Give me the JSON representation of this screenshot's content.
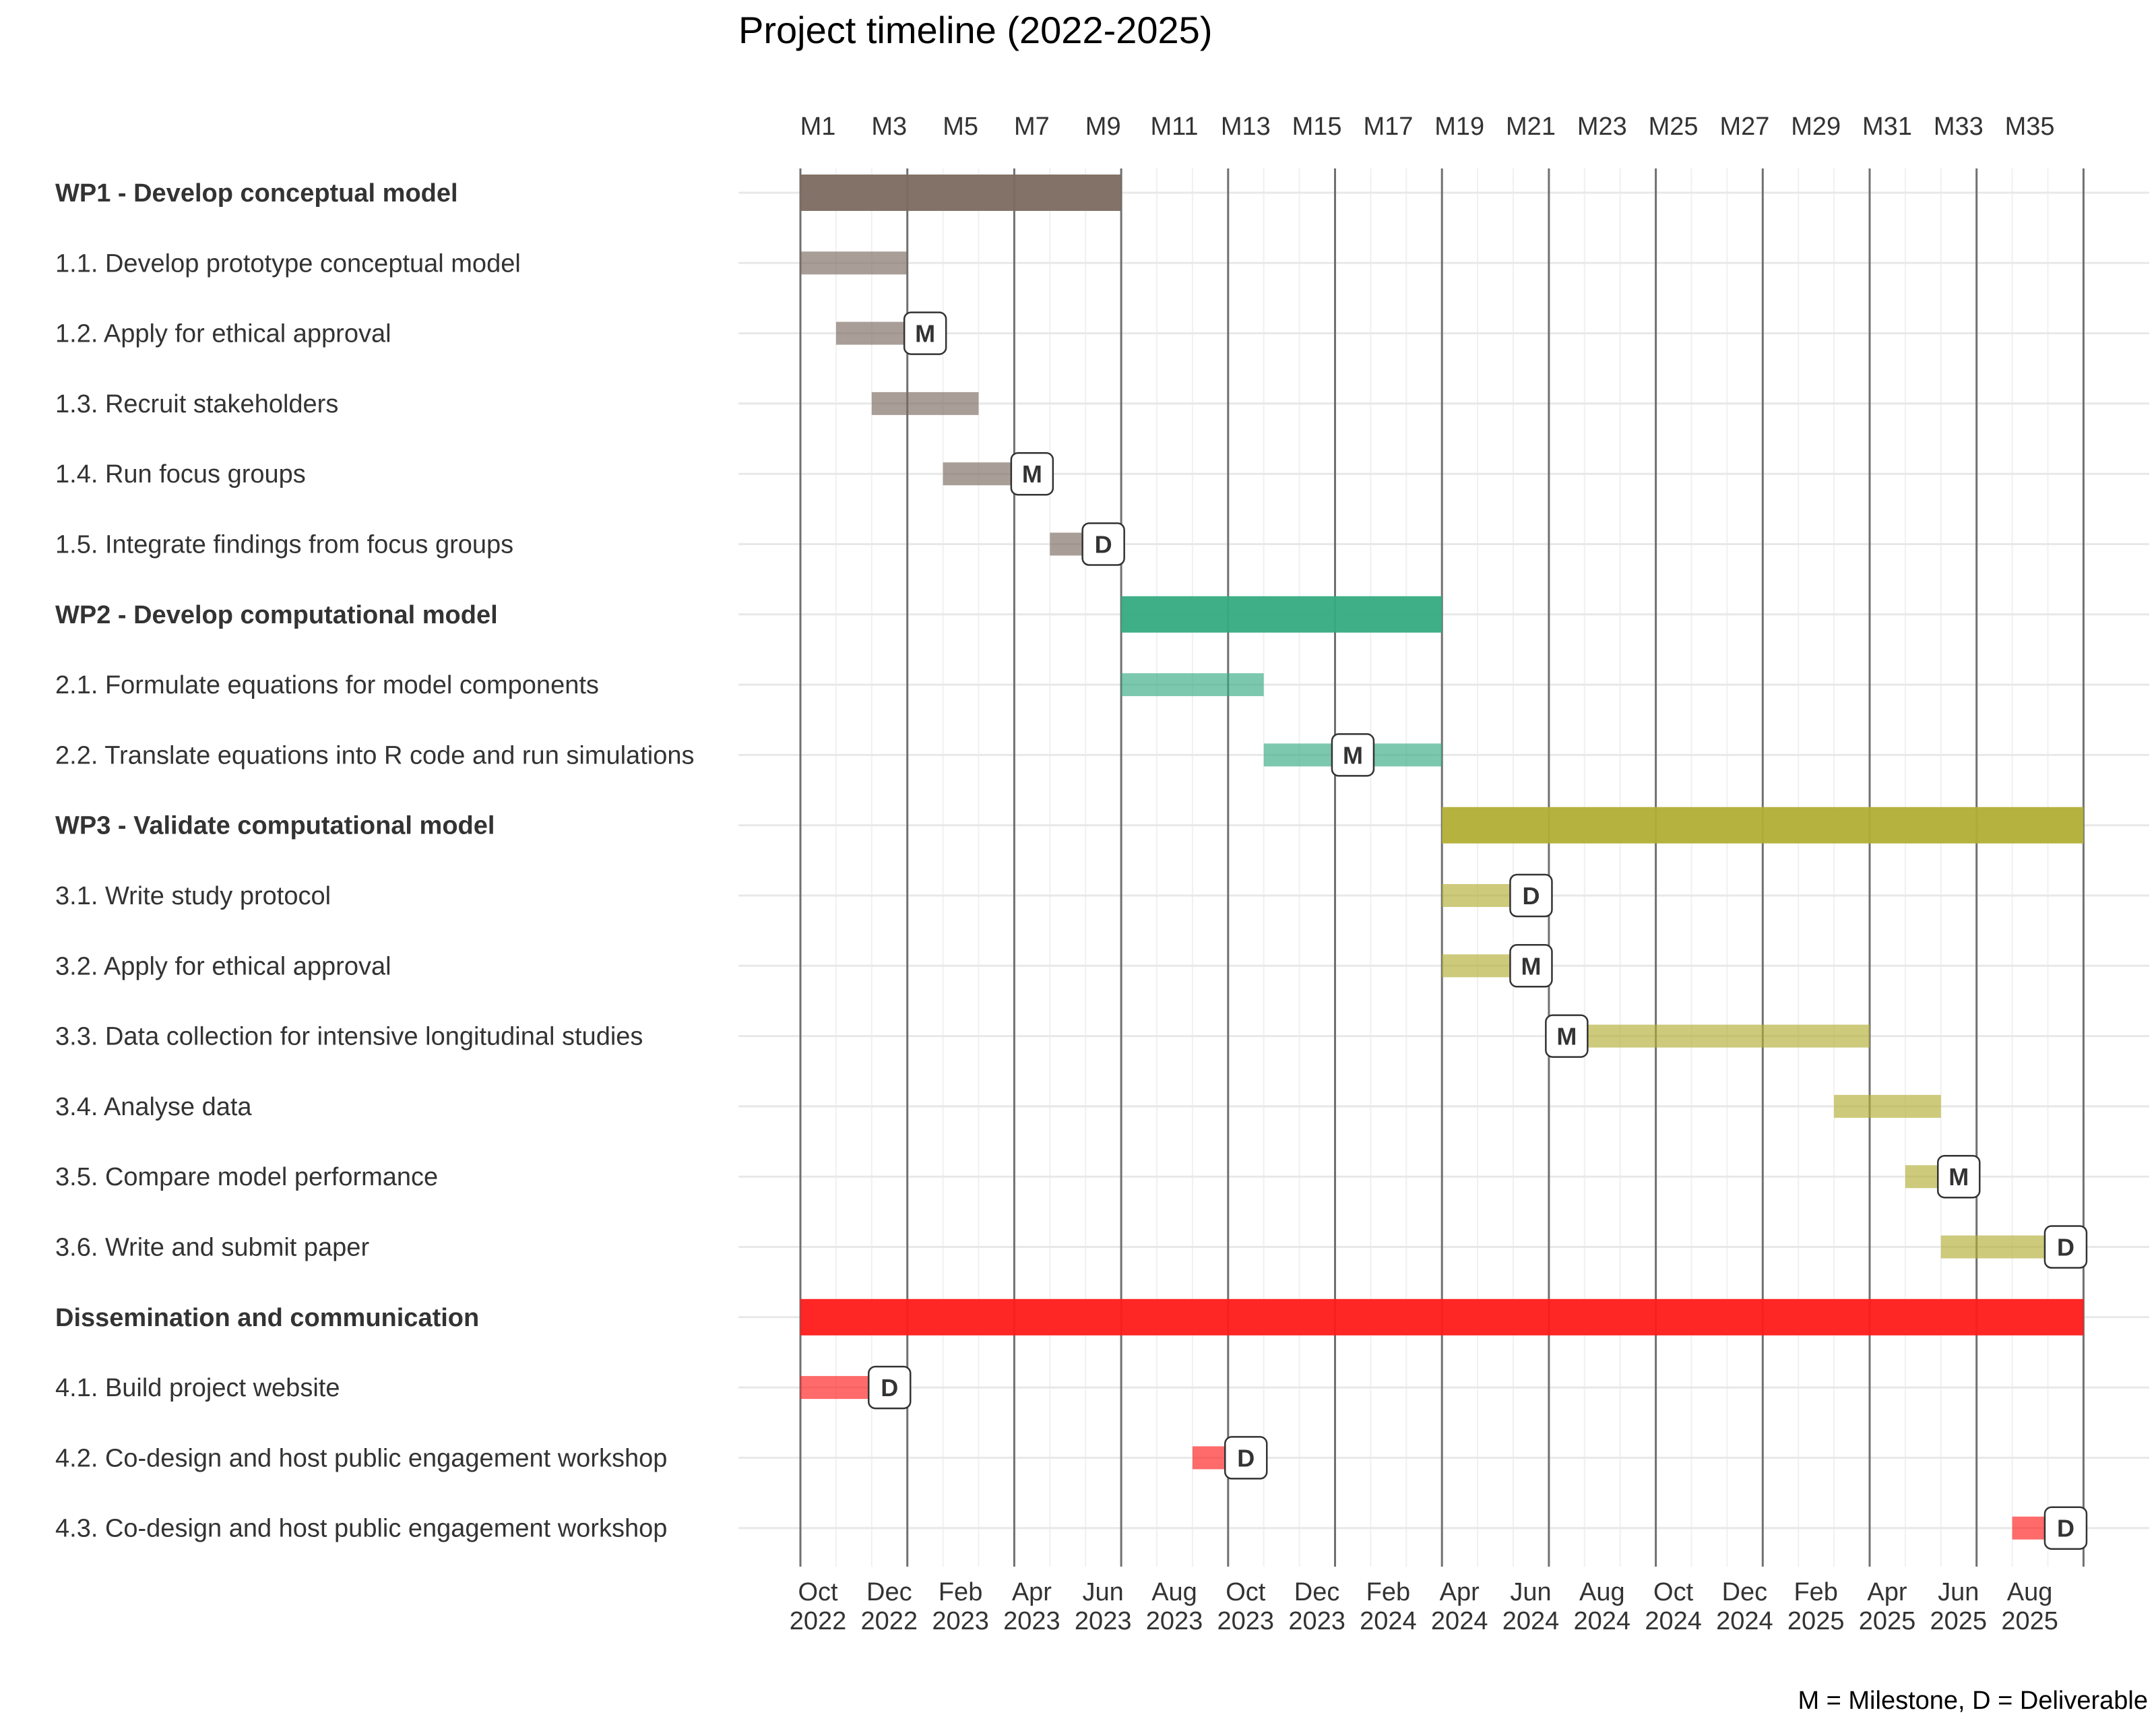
{
  "chart_data": {
    "type": "gantt",
    "title": "Project timeline (2022-2025)",
    "caption": "M = Milestone, D = Deliverable",
    "x_range_months": [
      1,
      37
    ],
    "top_ticks": [
      "M1",
      "M3",
      "M5",
      "M7",
      "M9",
      "M11",
      "M13",
      "M15",
      "M17",
      "M19",
      "M21",
      "M23",
      "M25",
      "M27",
      "M29",
      "M31",
      "M33",
      "M35"
    ],
    "bottom_ticks": [
      [
        "Oct",
        "2022"
      ],
      [
        "Dec",
        "2022"
      ],
      [
        "Feb",
        "2023"
      ],
      [
        "Apr",
        "2023"
      ],
      [
        "Jun",
        "2023"
      ],
      [
        "Aug",
        "2023"
      ],
      [
        "Oct",
        "2023"
      ],
      [
        "Dec",
        "2023"
      ],
      [
        "Feb",
        "2024"
      ],
      [
        "Apr",
        "2024"
      ],
      [
        "Jun",
        "2024"
      ],
      [
        "Aug",
        "2024"
      ],
      [
        "Oct",
        "2024"
      ],
      [
        "Dec",
        "2024"
      ],
      [
        "Feb",
        "2025"
      ],
      [
        "Apr",
        "2025"
      ],
      [
        "Jun",
        "2025"
      ],
      [
        "Aug",
        "2025"
      ]
    ],
    "wp_boundaries": [
      1,
      4,
      7,
      10,
      13,
      16,
      19,
      22,
      25,
      28,
      31,
      34,
      37
    ],
    "colors": {
      "wp1": "#7B6A60",
      "wp2": "#35AB82",
      "wp3": "#B2AE35",
      "wp4": "#FF1A1A"
    },
    "tasks": [
      {
        "label": "WP1 - Develop conceptual model",
        "bold": true,
        "group": "wp1",
        "start": 1,
        "end": 10
      },
      {
        "label": "1.1. Develop prototype conceptual model",
        "group": "wp1",
        "start": 1,
        "end": 4
      },
      {
        "label": "1.2. Apply for ethical approval",
        "group": "wp1",
        "start": 2,
        "end": 4.5,
        "marker": "M",
        "marker_at": 4.5
      },
      {
        "label": "1.3. Recruit stakeholders",
        "group": "wp1",
        "start": 3,
        "end": 6
      },
      {
        "label": "1.4. Run focus groups",
        "group": "wp1",
        "start": 5,
        "end": 7.5,
        "marker": "M",
        "marker_at": 7.5
      },
      {
        "label": "1.5. Integrate findings from focus groups",
        "group": "wp1",
        "start": 8,
        "end": 9.5,
        "marker": "D",
        "marker_at": 9.5
      },
      {
        "label": "WP2 - Develop computational model",
        "bold": true,
        "group": "wp2",
        "start": 10,
        "end": 19
      },
      {
        "label": "2.1. Formulate equations for model components",
        "group": "wp2",
        "start": 10,
        "end": 14
      },
      {
        "label": "2.2. Translate equations into R code and run simulations",
        "group": "wp2",
        "start": 14,
        "end": 19,
        "marker": "M",
        "marker_at": 16.5
      },
      {
        "label": "WP3 - Validate computational model",
        "bold": true,
        "group": "wp3",
        "start": 19,
        "end": 37
      },
      {
        "label": "3.1. Write study protocol",
        "group": "wp3",
        "start": 19,
        "end": 21.5,
        "marker": "D",
        "marker_at": 21.5
      },
      {
        "label": "3.2. Apply for ethical approval",
        "group": "wp3",
        "start": 19,
        "end": 21.5,
        "marker": "M",
        "marker_at": 21.5
      },
      {
        "label": "3.3. Data collection for intensive longitudinal studies",
        "group": "wp3",
        "start": 22.5,
        "end": 31,
        "marker": "M",
        "marker_at": 22.5
      },
      {
        "label": "3.4. Analyse data",
        "group": "wp3",
        "start": 30,
        "end": 33
      },
      {
        "label": "3.5. Compare model performance",
        "group": "wp3",
        "start": 32,
        "end": 33.5,
        "marker": "M",
        "marker_at": 33.5
      },
      {
        "label": "3.6. Write and submit paper",
        "group": "wp3",
        "start": 33,
        "end": 36.5,
        "marker": "D",
        "marker_at": 36.5
      },
      {
        "label": "Dissemination and communication",
        "bold": true,
        "group": "wp4",
        "start": 1,
        "end": 37
      },
      {
        "label": "4.1. Build project website",
        "group": "wp4",
        "start": 1,
        "end": 3.5,
        "marker": "D",
        "marker_at": 3.5
      },
      {
        "label": "4.2. Co-design and host public engagement workshop",
        "group": "wp4",
        "start": 12,
        "end": 13.5,
        "marker": "D",
        "marker_at": 13.5
      },
      {
        "label": "4.3. Co-design and host public engagement workshop",
        "group": "wp4",
        "start": 35,
        "end": 36.5,
        "marker": "D",
        "marker_at": 36.5
      }
    ]
  }
}
